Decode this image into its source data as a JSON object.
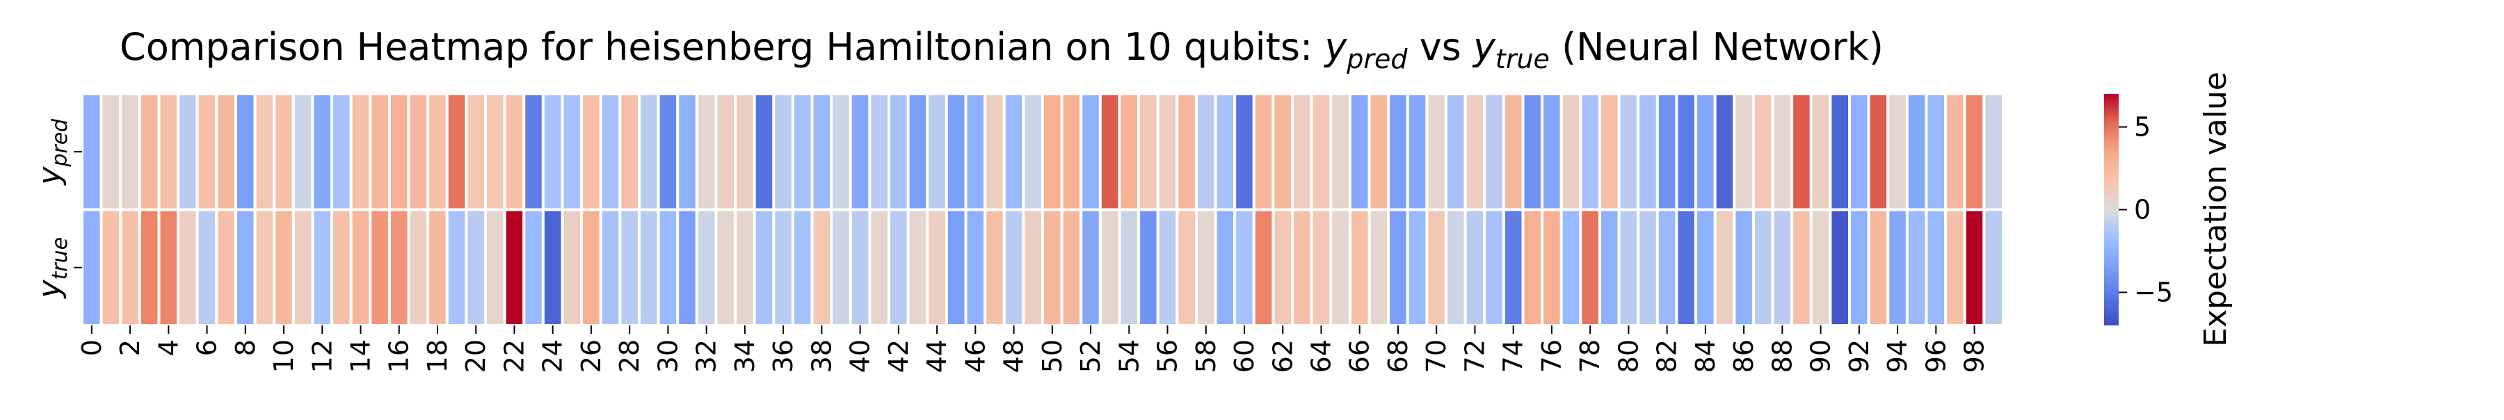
{
  "chart_data": {
    "type": "heatmap",
    "title": "Comparison Heatmap for heisenberg Hamiltonian on 10 qubits: y_pred vs y_true (Neural Network)",
    "title_parts": {
      "prefix": "Comparison Heatmap for heisenberg Hamiltonian on 10 qubits: ",
      "y_base": "y",
      "pred_sub": "pred",
      "vs": " vs ",
      "true_sub": "true",
      "suffix": " (Neural Network)"
    },
    "rows": [
      {
        "label_base": "y",
        "label_sub": "pred"
      },
      {
        "label_base": "y",
        "label_sub": "true"
      }
    ],
    "x_tick_labels": [
      "0",
      "2",
      "4",
      "6",
      "8",
      "10",
      "12",
      "14",
      "16",
      "18",
      "20",
      "22",
      "24",
      "26",
      "28",
      "30",
      "32",
      "34",
      "36",
      "38",
      "40",
      "42",
      "44",
      "46",
      "48",
      "50",
      "52",
      "54",
      "56",
      "58",
      "60",
      "62",
      "64",
      "66",
      "68",
      "70",
      "72",
      "74",
      "76",
      "78",
      "80",
      "82",
      "84",
      "86",
      "88",
      "90",
      "92",
      "94",
      "96",
      "98"
    ],
    "colorbar": {
      "label": "Expectation value",
      "vmin": -7,
      "vmax": 7,
      "ticks": [
        5,
        0,
        -5
      ],
      "tick_labels": [
        "5",
        "0",
        "−5"
      ],
      "colormap": "coolwarm"
    },
    "values": {
      "y_pred": [
        -2.5,
        0.5,
        0.5,
        2.5,
        2.0,
        -1.0,
        2.0,
        2.5,
        -3.5,
        1.5,
        2.0,
        -0.5,
        -3.0,
        -1.5,
        2.0,
        2.5,
        3.0,
        2.5,
        2.0,
        5.0,
        1.5,
        1.5,
        2.0,
        -5.0,
        -1.5,
        -1.5,
        2.0,
        -1.5,
        2.0,
        -1.0,
        -4.5,
        -2.5,
        0.5,
        1.0,
        1.0,
        -5.5,
        -1.0,
        -1.5,
        -2.0,
        -0.5,
        -3.0,
        -1.0,
        -1.5,
        -3.5,
        -1.0,
        -3.5,
        -2.5,
        1.0,
        -2.0,
        -0.5,
        3.0,
        3.0,
        -2.5,
        5.5,
        3.0,
        1.5,
        1.0,
        2.5,
        -1.0,
        -1.5,
        -5.5,
        2.5,
        2.5,
        1.0,
        1.5,
        0.5,
        -3.0,
        2.5,
        -3.5,
        -3.0,
        0.5,
        -1.5,
        1.0,
        -1.0,
        2.5,
        -4.0,
        -3.0,
        1.0,
        -1.5,
        2.0,
        -1.0,
        -1.5,
        -4.0,
        -5.0,
        -3.0,
        -6.0,
        0.5,
        1.5,
        0.5,
        5.5,
        1.0,
        -6.0,
        -2.5,
        5.5,
        0.5,
        -3.0,
        -2.0,
        2.5,
        4.5,
        -0.5
      ],
      "y_true": [
        -2.5,
        2.0,
        2.0,
        4.5,
        4.5,
        1.0,
        -1.0,
        2.0,
        -2.5,
        1.5,
        2.5,
        1.0,
        -1.5,
        2.0,
        2.5,
        4.0,
        4.0,
        1.0,
        2.5,
        -1.5,
        -1.0,
        0.5,
        7.0,
        -2.0,
        -6.0,
        1.0,
        3.0,
        -1.5,
        -1.0,
        -1.0,
        -2.0,
        -3.5,
        -0.5,
        0.5,
        0.5,
        -1.5,
        -1.0,
        -1.5,
        1.5,
        -0.5,
        -1.0,
        0.5,
        -1.0,
        0.5,
        1.0,
        -3.5,
        -2.5,
        2.0,
        -1.0,
        1.0,
        2.5,
        2.5,
        -3.0,
        0.5,
        -0.5,
        -4.0,
        -1.0,
        1.5,
        0.5,
        -2.5,
        -1.5,
        4.5,
        1.5,
        2.0,
        1.5,
        0.5,
        2.0,
        0.5,
        -3.5,
        -2.0,
        1.5,
        -0.5,
        -1.0,
        -1.5,
        -5.0,
        3.0,
        3.0,
        -2.0,
        5.0,
        -2.5,
        -1.0,
        -1.0,
        -2.0,
        -5.5,
        -2.5,
        1.0,
        -2.5,
        -1.0,
        -1.0,
        2.0,
        0.5,
        -6.5,
        -2.5,
        2.5,
        -3.0,
        -2.0,
        -2.0,
        2.0,
        7.0,
        -1.0
      ]
    }
  }
}
